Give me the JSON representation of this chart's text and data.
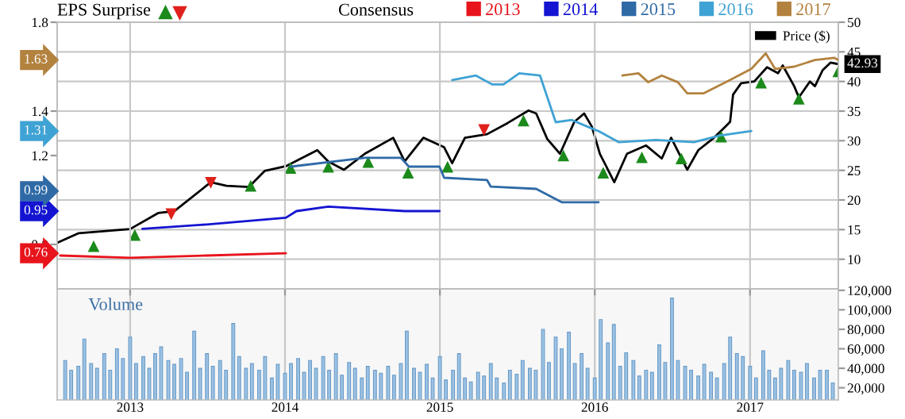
{
  "chart_data": [
    {
      "type": "line",
      "legend": "top",
      "grid": true,
      "tick_labels": "y",
      "annotations": [
        "EPS Surprise",
        "Consensus",
        "0.76",
        "0.95",
        "0.99",
        "1.31",
        "1.63"
      ],
      "xlim": [
        "2012-07-13",
        "2017-07-28"
      ],
      "xticks": [
        {
          "value": "2013-01-01",
          "label": null
        },
        {
          "value": "2014-01-01",
          "label": null
        },
        {
          "value": "2015-01-01",
          "label": null
        },
        {
          "value": "2016-01-01",
          "label": null
        },
        {
          "value": "2017-01-01",
          "label": null
        }
      ],
      "ylim": [
        0.6,
        1.8
      ],
      "yticks": [
        0.8,
        1.2,
        1.4,
        1.8
      ],
      "y2lim": [
        5,
        50
      ],
      "y2ticks": [
        10,
        15,
        20,
        25,
        30,
        35,
        40,
        45,
        50
      ],
      "series": [
        {
          "name": "2013",
          "color": "#e8141c",
          "x": [
            "2012-07-20",
            "2013-01-01",
            "2013-07-01",
            "2014-01-03"
          ],
          "values": [
            0.75,
            0.74,
            0.75,
            0.76
          ]
        },
        {
          "name": "2014",
          "color": "#1414d2",
          "x": [
            "2013-01-30",
            "2013-07-01",
            "2014-01-03",
            "2014-01-28",
            "2014-04-13",
            "2014-10-10",
            "2014-12-31"
          ],
          "values": [
            0.87,
            0.89,
            0.92,
            0.95,
            0.97,
            0.95,
            0.95
          ]
        },
        {
          "name": "2015",
          "color": "#2f6aa6",
          "x": [
            "2014-01-14",
            "2014-07-08",
            "2014-10-01",
            "2014-10-20",
            "2014-12-31",
            "2015-01-11",
            "2015-04-22",
            "2015-05-01",
            "2015-08-16",
            "2015-10-15",
            "2016-01-10"
          ],
          "values": [
            1.15,
            1.19,
            1.19,
            1.15,
            1.15,
            1.1,
            1.09,
            1.06,
            1.05,
            0.99,
            0.99
          ]
        },
        {
          "name": "2016",
          "color": "#3fa2d4",
          "x": [
            "2015-01-30",
            "2015-03-27",
            "2015-05-04",
            "2015-05-31",
            "2015-07-07",
            "2015-08-25",
            "2015-10-01",
            "2015-11-08",
            "2015-12-15",
            "2016-01-10",
            "2016-02-27",
            "2016-05-24",
            "2016-08-22",
            "2016-10-21",
            "2017-01-04"
          ],
          "values": [
            1.54,
            1.56,
            1.52,
            1.52,
            1.57,
            1.56,
            1.35,
            1.36,
            1.33,
            1.31,
            1.26,
            1.27,
            1.26,
            1.29,
            1.31
          ]
        },
        {
          "name": "2017",
          "color": "#b3823f",
          "x": [
            "2016-03-06",
            "2016-04-13",
            "2016-05-06",
            "2016-06-07",
            "2016-07-15",
            "2016-08-06",
            "2016-09-14",
            "2016-11-15",
            "2017-01-04",
            "2017-02-07",
            "2017-03-01",
            "2017-04-15",
            "2017-06-03",
            "2017-07-18",
            "2017-07-28"
          ],
          "values": [
            1.56,
            1.57,
            1.53,
            1.56,
            1.53,
            1.48,
            1.48,
            1.54,
            1.59,
            1.66,
            1.59,
            1.6,
            1.63,
            1.64,
            1.63
          ]
        },
        {
          "name": "Price ($)",
          "color": "#000000",
          "axis": "y2",
          "x": [
            "2012-07-14",
            "2012-09-02",
            "2013-01-01",
            "2013-03-08",
            "2013-04-15",
            "2013-07-10",
            "2013-08-16",
            "2013-10-08",
            "2013-11-14",
            "2014-01-03",
            "2014-03-18",
            "2014-04-13",
            "2014-05-20",
            "2014-07-08",
            "2014-09-13",
            "2014-10-10",
            "2014-11-23",
            "2015-01-11",
            "2015-01-30",
            "2015-03-01",
            "2015-04-22",
            "2015-06-10",
            "2015-07-29",
            "2015-08-16",
            "2015-09-11",
            "2015-10-11",
            "2015-11-14",
            "2015-12-07",
            "2015-12-25",
            "2016-01-13",
            "2016-02-16",
            "2016-03-17",
            "2016-05-01",
            "2016-06-07",
            "2016-06-29",
            "2016-08-06",
            "2016-09-01",
            "2016-10-08",
            "2016-11-04",
            "2016-11-15",
            "2016-11-22",
            "2016-12-11",
            "2017-01-11",
            "2017-02-10",
            "2017-03-08",
            "2017-03-19",
            "2017-04-15",
            "2017-04-26",
            "2017-05-22",
            "2017-06-03",
            "2017-06-21",
            "2017-07-10",
            "2017-07-28"
          ],
          "values": [
            12.8,
            14.4,
            15.1,
            17.8,
            18.1,
            23,
            22.4,
            22.2,
            24.9,
            25.7,
            28.4,
            26.5,
            25.1,
            27.8,
            30.5,
            26.5,
            30.5,
            28.9,
            26.2,
            30.5,
            31.1,
            33,
            35.1,
            34.6,
            30.3,
            27.8,
            33.2,
            34.6,
            32.4,
            27.8,
            23,
            27.8,
            29.2,
            27,
            30.5,
            25.1,
            28.4,
            30.5,
            32.4,
            33.2,
            37.8,
            39.7,
            40,
            42.4,
            41.4,
            42.7,
            39.2,
            37.3,
            40,
            39.2,
            41.9,
            43.2,
            42.93
          ],
          "value_labels": [
            null,
            null,
            null,
            null,
            null,
            null,
            null,
            null,
            null,
            null,
            null,
            null,
            null,
            null,
            null,
            null,
            null,
            null,
            null,
            null,
            null,
            null,
            null,
            null,
            null,
            null,
            null,
            null,
            null,
            null,
            null,
            null,
            null,
            null,
            null,
            null,
            null,
            null,
            null,
            null,
            null,
            null,
            null,
            null,
            null,
            null,
            null,
            null,
            null,
            null,
            null,
            null,
            "42.93"
          ]
        },
        {
          "type": "scatter",
          "color": "#1b8a1b",
          "marker": "triangle",
          "axis": "y2",
          "x": [
            "2012-10-07",
            "2013-01-12",
            "2013-10-12",
            "2014-01-14",
            "2014-04-13",
            "2014-07-16",
            "2014-10-18",
            "2015-01-19",
            "2015-07-17",
            "2015-10-19",
            "2016-01-21",
            "2016-04-21",
            "2016-07-23",
            "2016-10-25",
            "2017-01-27",
            "2017-04-26",
            "2017-07-28"
          ],
          "values": [
            12.2,
            14.1,
            22.4,
            25.4,
            25.6,
            26.4,
            24.6,
            25.6,
            33.4,
            27.5,
            24.6,
            27.2,
            27,
            30.7,
            39.8,
            37.1,
            41.7
          ]
        },
        {
          "type": "scatter",
          "color": "#e0201c",
          "marker": "triangle_down",
          "axis": "y2",
          "x": [
            "2013-04-08",
            "2013-07-10",
            "2015-04-15"
          ],
          "values": [
            17.6,
            22.9,
            31.8
          ]
        }
      ]
    },
    {
      "type": "bar",
      "title": "Volume",
      "color": "#9cc2e4",
      "grid": "x",
      "xlim": [
        "2012-07-13",
        "2017-07-28"
      ],
      "xticks": [
        {
          "value": "2013-01-01",
          "label": "2013"
        },
        {
          "value": "2014-01-01",
          "label": "2014"
        },
        {
          "value": "2015-01-01",
          "label": "2015"
        },
        {
          "value": "2016-01-01",
          "label": "2016"
        },
        {
          "value": "2017-01-01",
          "label": "2017"
        }
      ],
      "ylim": [
        7500,
        121500
      ],
      "yticks": [
        {
          "value": 20000,
          "label": "20,000"
        },
        {
          "value": 40000,
          "label": "40,000"
        },
        {
          "value": 60000,
          "label": "60,000"
        },
        {
          "value": 80000,
          "label": "80,000"
        },
        {
          "value": 100000,
          "label": "100,000"
        },
        {
          "value": 120000,
          "label": "120,000"
        }
      ],
      "x": [
        "2012-08-01",
        "2012-08-15",
        "2012-09-01",
        "2012-09-15",
        "2012-10-01",
        "2012-10-15",
        "2012-11-01",
        "2012-11-15",
        "2012-12-01",
        "2012-12-15",
        "2013-01-01",
        "2013-01-15",
        "2013-02-01",
        "2013-02-15",
        "2013-03-01",
        "2013-03-15",
        "2013-04-01",
        "2013-04-15",
        "2013-05-01",
        "2013-05-15",
        "2013-06-01",
        "2013-06-15",
        "2013-07-01",
        "2013-07-15",
        "2013-08-01",
        "2013-08-15",
        "2013-09-01",
        "2013-09-15",
        "2013-10-01",
        "2013-10-15",
        "2013-11-01",
        "2013-11-15",
        "2013-12-01",
        "2013-12-15",
        "2014-01-01",
        "2014-01-15",
        "2014-02-01",
        "2014-02-15",
        "2014-03-01",
        "2014-03-15",
        "2014-04-01",
        "2014-04-15",
        "2014-05-01",
        "2014-05-15",
        "2014-06-01",
        "2014-06-15",
        "2014-07-01",
        "2014-07-15",
        "2014-08-01",
        "2014-08-15",
        "2014-09-01",
        "2014-09-15",
        "2014-10-01",
        "2014-10-15",
        "2014-11-01",
        "2014-11-15",
        "2014-12-01",
        "2014-12-15",
        "2015-01-01",
        "2015-01-15",
        "2015-02-01",
        "2015-02-15",
        "2015-03-01",
        "2015-03-15",
        "2015-04-01",
        "2015-04-15",
        "2015-05-01",
        "2015-05-15",
        "2015-06-01",
        "2015-06-15",
        "2015-07-01",
        "2015-07-15",
        "2015-08-01",
        "2015-08-15",
        "2015-09-01",
        "2015-09-15",
        "2015-10-01",
        "2015-10-15",
        "2015-11-01",
        "2015-11-15",
        "2015-12-01",
        "2015-12-15",
        "2016-01-01",
        "2016-01-15",
        "2016-02-01",
        "2016-02-15",
        "2016-03-01",
        "2016-03-15",
        "2016-04-01",
        "2016-04-15",
        "2016-05-01",
        "2016-05-15",
        "2016-06-01",
        "2016-06-15",
        "2016-07-01",
        "2016-07-15",
        "2016-08-01",
        "2016-08-15",
        "2016-09-01",
        "2016-09-15",
        "2016-10-01",
        "2016-10-15",
        "2016-11-01",
        "2016-11-15",
        "2016-12-01",
        "2016-12-15",
        "2017-01-01",
        "2017-01-15",
        "2017-02-01",
        "2017-02-15",
        "2017-03-01",
        "2017-03-15",
        "2017-04-01",
        "2017-04-15",
        "2017-05-01",
        "2017-05-15",
        "2017-06-01",
        "2017-06-15",
        "2017-07-01",
        "2017-07-15"
      ],
      "values": [
        48000,
        38000,
        42000,
        70000,
        45000,
        40000,
        55000,
        38000,
        60000,
        50000,
        72000,
        45000,
        52000,
        40000,
        55000,
        62000,
        48000,
        44000,
        50000,
        36000,
        78000,
        40000,
        55000,
        42000,
        48000,
        38000,
        86000,
        52000,
        40000,
        45000,
        38000,
        52000,
        30000,
        44000,
        35000,
        45000,
        50000,
        36000,
        48000,
        40000,
        52000,
        38000,
        55000,
        33000,
        46000,
        40000,
        30000,
        42000,
        38000,
        35000,
        42000,
        33000,
        45000,
        78000,
        40000,
        36000,
        44000,
        30000,
        52000,
        28000,
        38000,
        55000,
        30000,
        26000,
        36000,
        32000,
        45000,
        30000,
        25000,
        38000,
        34000,
        48000,
        40000,
        38000,
        80000,
        46000,
        72000,
        60000,
        77000,
        45000,
        55000,
        40000,
        30000,
        90000,
        66000,
        85000,
        42000,
        56000,
        48000,
        32000,
        38000,
        36000,
        64000,
        46000,
        112000,
        48000,
        42000,
        38000,
        32000,
        44000,
        36000,
        30000,
        45000,
        72000,
        55000,
        52000,
        42000,
        30000,
        58000,
        38000,
        30000,
        40000,
        48000,
        38000,
        36000,
        45000,
        30000,
        38000,
        38000,
        25000
      ]
    }
  ]
}
